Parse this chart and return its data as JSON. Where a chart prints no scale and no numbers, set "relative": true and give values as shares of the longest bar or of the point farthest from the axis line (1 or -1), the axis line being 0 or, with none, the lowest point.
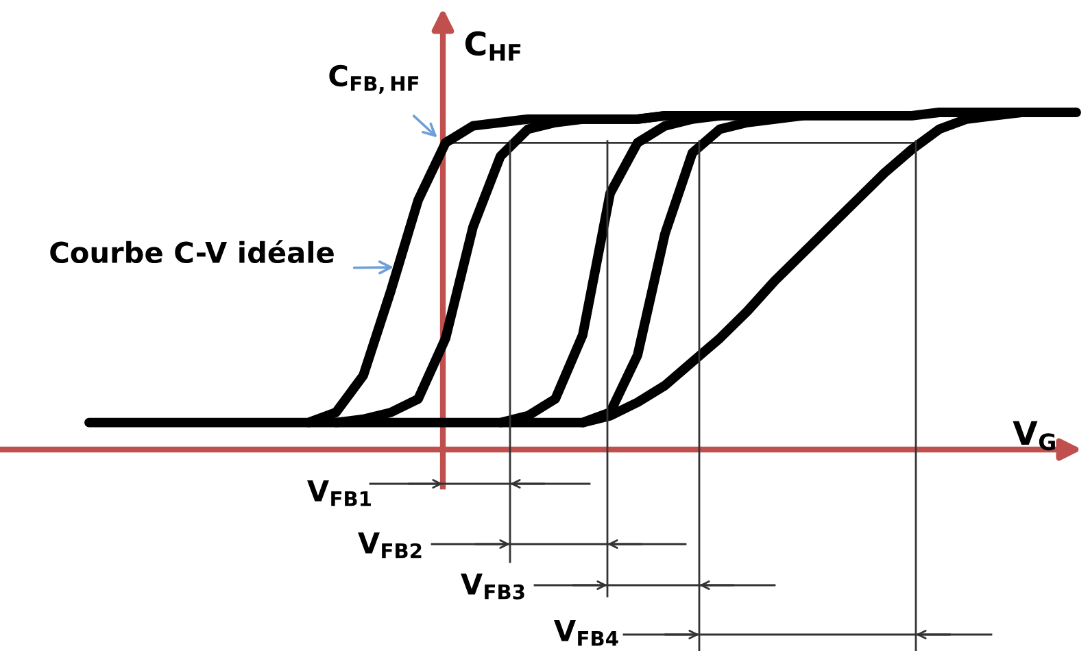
{
  "chart_data": {
    "type": "line",
    "relative": true,
    "marker": "none",
    "line_style": "solid",
    "xlabel": "V$_{G}$",
    "ylabel": "C$_{HF}$",
    "categories": [
      null,
      null,
      null,
      null,
      null,
      null,
      null,
      null,
      null,
      null,
      null,
      null,
      null,
      null,
      null,
      null,
      null,
      null,
      null,
      null,
      null,
      null,
      null,
      null,
      null,
      null,
      null,
      null,
      null,
      null,
      null,
      null,
      null,
      null,
      null,
      null,
      null
    ],
    "ref_lines": [
      {
        "axis": "y",
        "value": 0.91,
        "label": "C$_{FB,HF}$",
        "color": "#333333"
      }
    ],
    "annotations": [
      "Courbe C-V idéale",
      "V$_{FB1}$",
      "V$_{FB2}$",
      "V$_{FB3}$",
      "V$_{FB4}$"
    ],
    "series": [
      {
        "color": "#000000",
        "values": [
          0.08,
          0.08,
          0.08,
          0.08,
          0.08,
          0.08,
          0.08,
          0.08,
          0.08,
          0.11,
          0.22,
          0.47,
          0.74,
          0.91,
          0.96,
          0.97,
          0.98,
          0.98,
          0.98,
          0.98,
          0.98,
          0.99,
          0.99,
          0.99,
          0.99,
          0.99,
          0.99,
          0.99,
          0.99,
          0.99,
          0.99,
          1.0,
          1.0,
          1.0,
          1.0,
          1.0,
          1.0
        ]
      },
      {
        "color": "#000000",
        "values": [
          null,
          null,
          null,
          null,
          null,
          null,
          null,
          null,
          0.08,
          0.08,
          0.09,
          0.11,
          0.15,
          0.33,
          0.66,
          0.87,
          0.95,
          0.97,
          0.98,
          0.98,
          0.98,
          0.99,
          null,
          null,
          null,
          null,
          null,
          null,
          null,
          null,
          null,
          null,
          null,
          null,
          null,
          null,
          null
        ]
      },
      {
        "color": "#000000",
        "values": [
          null,
          null,
          null,
          null,
          null,
          null,
          null,
          null,
          null,
          0.08,
          0.08,
          0.08,
          0.08,
          0.08,
          0.08,
          0.08,
          0.1,
          0.15,
          0.34,
          0.76,
          0.91,
          0.96,
          0.98,
          0.99,
          null,
          null,
          null,
          null,
          null,
          null,
          null,
          null,
          null,
          null,
          null,
          null,
          null
        ]
      },
      {
        "color": "#000000",
        "values": [
          null,
          null,
          null,
          null,
          null,
          null,
          null,
          null,
          null,
          null,
          null,
          null,
          null,
          null,
          null,
          0.08,
          0.08,
          0.08,
          0.08,
          0.11,
          0.28,
          0.64,
          0.88,
          0.95,
          0.97,
          0.98,
          0.99,
          null,
          null,
          null,
          null,
          null,
          null,
          null,
          null,
          null,
          null
        ]
      },
      {
        "color": "#000000",
        "values": [
          null,
          null,
          null,
          null,
          null,
          null,
          null,
          null,
          null,
          null,
          null,
          null,
          null,
          null,
          null,
          null,
          null,
          null,
          0.08,
          0.1,
          0.14,
          0.19,
          0.26,
          0.33,
          0.41,
          0.5,
          0.58,
          0.66,
          0.74,
          0.82,
          0.89,
          0.95,
          0.98,
          0.99,
          1.0,
          null,
          null
        ]
      }
    ]
  }
}
